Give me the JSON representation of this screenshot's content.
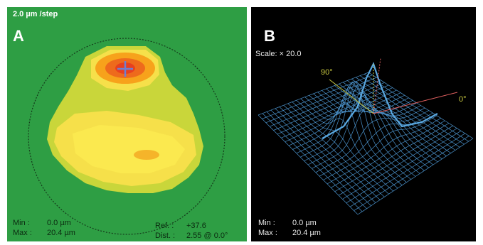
{
  "panel_a": {
    "label": "A",
    "header": "2.0 µm /step",
    "min_label": "Min :",
    "min_value": "0.0 µm",
    "max_label": "Max :",
    "max_value": "20.4 µm",
    "ref_label": "Ref. :",
    "ref_value": "+37.6",
    "dist_label": "Dist. :",
    "dist_value": "2.55 @ 0.0°",
    "colors": {
      "background": "#2e9e44",
      "peak": "#e8401e",
      "high": "#f7a21b",
      "mid": "#f6e04a",
      "low": "#c9d63a"
    }
  },
  "panel_b": {
    "label": "B",
    "scale_text": "Scale: × 20.0",
    "angle_90": "90°",
    "angle_0": "0°",
    "min_label": "Min :",
    "min_value": "0.0 µm",
    "max_label": "Max :",
    "max_value": "20.4 µm",
    "colors": {
      "mesh": "#4a90c8",
      "axis_0": "#e06060",
      "axis_90": "#c8c840"
    }
  }
}
